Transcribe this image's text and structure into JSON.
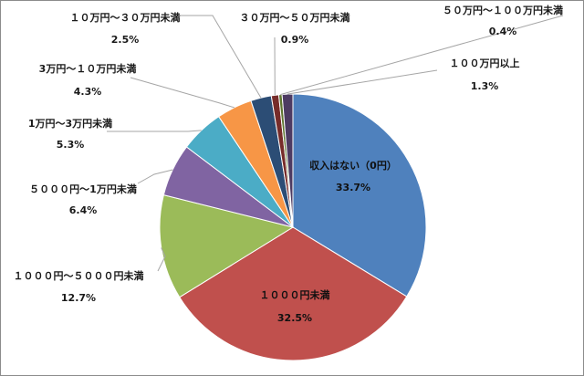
{
  "chart_data": {
    "type": "pie",
    "title": "",
    "legend": "none",
    "slices": [
      {
        "label": "収入はない（0円）",
        "value": 33.7,
        "display": "33.7%",
        "color": "#4f81bd"
      },
      {
        "label": "１０００円未満",
        "value": 32.5,
        "display": "32.5%",
        "color": "#c0504d"
      },
      {
        "label": "１０００円～５０００円未満",
        "value": 12.7,
        "display": "12.7%",
        "color": "#9bbb59"
      },
      {
        "label": "５０００円～1万円未満",
        "value": 6.4,
        "display": "6.4%",
        "color": "#8064a2"
      },
      {
        "label": "1万円～3万円未満",
        "value": 5.3,
        "display": "5.3%",
        "color": "#4bacc6"
      },
      {
        "label": "3万円～１０万円未満",
        "value": 4.3,
        "display": "4.3%",
        "color": "#f79646"
      },
      {
        "label": "１０万円～３０万円未満",
        "value": 2.5,
        "display": "2.5%",
        "color": "#2c4d75"
      },
      {
        "label": "３０万円～５０万円未満",
        "value": 0.9,
        "display": "0.9%",
        "color": "#772c2a"
      },
      {
        "label": "５０万円～１００万円未満",
        "value": 0.4,
        "display": "0.4%",
        "color": "#5f7530"
      },
      {
        "label": "１００万円以上",
        "value": 1.3,
        "display": "1.3%",
        "color": "#4d3b62"
      }
    ]
  }
}
